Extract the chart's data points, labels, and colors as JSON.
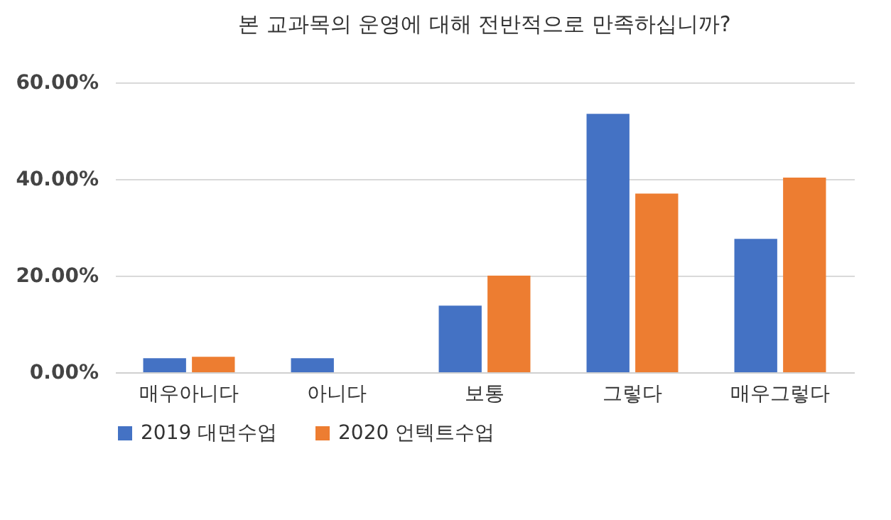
{
  "chart_data": {
    "type": "bar",
    "title": "본 교과목의 운영에 대해 전반적으로 만족하십니까?",
    "categories": [
      "매우아니다",
      "아니다",
      "보통",
      "그렇다",
      "매우그렇다"
    ],
    "series": [
      {
        "name": "2019 대면수업",
        "color": "#4472c4",
        "values": [
          2.9,
          2.9,
          13.8,
          53.5,
          27.6
        ]
      },
      {
        "name": "2020 언텍트수업",
        "color": "#ed7d31",
        "values": [
          3.2,
          0,
          20.0,
          37.0,
          40.3
        ]
      }
    ],
    "ylim": [
      0,
      60
    ],
    "yticks": [
      {
        "value": 0,
        "label": "0.00%"
      },
      {
        "value": 20,
        "label": "20.00%"
      },
      {
        "value": 40,
        "label": "40.00%"
      },
      {
        "value": 60,
        "label": "60.00%"
      }
    ],
    "grid": "y",
    "legend": "bottom"
  }
}
